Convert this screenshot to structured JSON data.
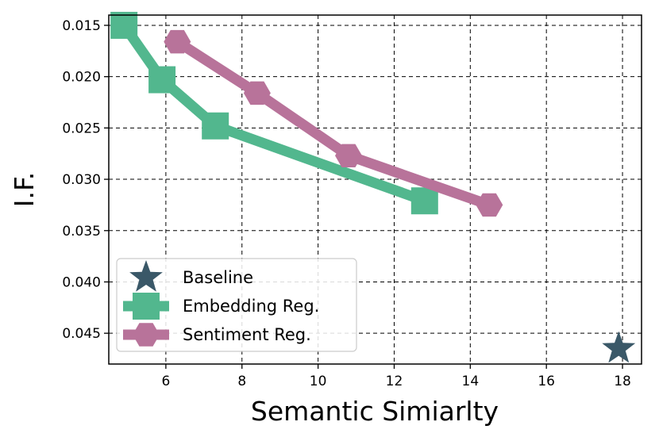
{
  "chart_data": {
    "type": "line",
    "xlabel": "Semantic Simiarlty",
    "ylabel": "I.F.",
    "xlim": [
      4.5,
      18.5
    ],
    "ylim": [
      0.014,
      0.048
    ],
    "y_inverted": true,
    "xticks": [
      6,
      8,
      10,
      12,
      14,
      16,
      18
    ],
    "xtick_labels": [
      "6",
      "8",
      "10",
      "12",
      "14",
      "16",
      "18"
    ],
    "yticks": [
      0.015,
      0.02,
      0.025,
      0.03,
      0.035,
      0.04,
      0.045
    ],
    "ytick_labels": [
      "0.015",
      "0.020",
      "0.025",
      "0.030",
      "0.035",
      "0.040",
      "0.045"
    ],
    "grid": true,
    "legend_position": "lower-left",
    "series": [
      {
        "name": "Baseline",
        "marker": "star",
        "color": "#3a5868",
        "x": [
          17.9
        ],
        "y": [
          0.0465
        ]
      },
      {
        "name": "Embedding Reg.",
        "marker": "square",
        "color": "#52b78e",
        "x": [
          4.9,
          5.9,
          7.3,
          12.8
        ],
        "y": [
          0.015,
          0.0203,
          0.0248,
          0.0321
        ]
      },
      {
        "name": "Sentiment Reg.",
        "marker": "hexagon",
        "color": "#b8739a",
        "x": [
          6.3,
          8.4,
          10.8,
          14.5
        ],
        "y": [
          0.0166,
          0.0216,
          0.0277,
          0.0325
        ]
      }
    ]
  }
}
